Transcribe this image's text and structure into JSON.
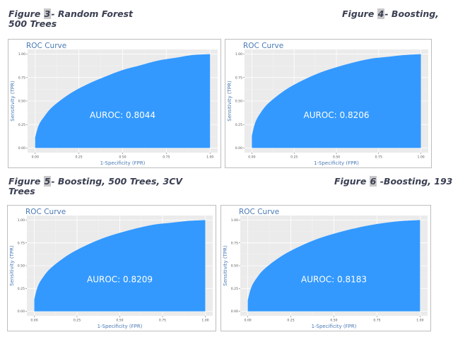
{
  "captions": [
    {
      "prefix": "Figure ",
      "num": "3",
      "rest": "- Random Forest",
      "line2": "500 Trees"
    },
    {
      "prefix": "Figure ",
      "num": "4",
      "rest": "- Boosting,",
      "line2": ""
    },
    {
      "prefix": "Figure ",
      "num": "5",
      "rest": "- Boosting, 500 Trees, 3CV",
      "line2": "Trees"
    },
    {
      "prefix": "Figure ",
      "num": "6",
      "rest": " -Boosting, 193",
      "line2": ""
    }
  ],
  "chart_data": [
    {
      "type": "area",
      "title": "ROC Curve",
      "xlabel": "1-Specificity (FPR)",
      "ylabel": "Sensitivity (TPR)",
      "annotation": "AUROC: 0.8044",
      "auc": 0.8044,
      "xticks": [
        "0.00",
        "0.25",
        "0.50",
        "0.75",
        "1.00"
      ],
      "yticks": [
        "0.00",
        "0.25",
        "0.50",
        "0.75",
        "1.00"
      ],
      "xlim": [
        0,
        1
      ],
      "ylim": [
        0,
        1
      ],
      "grid": true,
      "color": "#3399ff",
      "x": [
        0,
        0.02,
        0.05,
        0.1,
        0.2,
        0.3,
        0.4,
        0.5,
        0.6,
        0.7,
        0.8,
        0.9,
        1.0
      ],
      "y": [
        0.11,
        0.24,
        0.33,
        0.44,
        0.58,
        0.68,
        0.76,
        0.83,
        0.88,
        0.93,
        0.96,
        0.99,
        1.0
      ]
    },
    {
      "type": "area",
      "title": "ROC Curve",
      "xlabel": "1-Specificity (FPR)",
      "ylabel": "Sensitivity (TPR)",
      "annotation": "AUROC: 0.8206",
      "auc": 0.8206,
      "xticks": [
        "0.00",
        "0.25",
        "0.50",
        "0.75",
        "1.00"
      ],
      "yticks": [
        "0.00",
        "0.25",
        "0.50",
        "0.75",
        "1.00"
      ],
      "xlim": [
        0,
        1
      ],
      "ylim": [
        0,
        1
      ],
      "grid": true,
      "color": "#3399ff",
      "x": [
        0,
        0.02,
        0.05,
        0.1,
        0.2,
        0.3,
        0.4,
        0.5,
        0.6,
        0.7,
        0.8,
        0.9,
        1.0
      ],
      "y": [
        0.13,
        0.27,
        0.37,
        0.48,
        0.62,
        0.72,
        0.8,
        0.86,
        0.91,
        0.95,
        0.97,
        0.99,
        1.0
      ]
    },
    {
      "type": "area",
      "title": "ROC Curve",
      "xlabel": "1-Specificity (FPR)",
      "ylabel": "Sensitivity (TPR)",
      "annotation": "AUROC: 0.8209",
      "auc": 0.8209,
      "xticks": [
        "0.00",
        "0.25",
        "0.50",
        "0.75",
        "1.00"
      ],
      "yticks": [
        "0.00",
        "0.25",
        "0.50",
        "0.75",
        "1.00"
      ],
      "xlim": [
        0,
        1
      ],
      "ylim": [
        0,
        1
      ],
      "grid": true,
      "color": "#3399ff",
      "x": [
        0,
        0.02,
        0.05,
        0.1,
        0.2,
        0.3,
        0.4,
        0.5,
        0.6,
        0.7,
        0.8,
        0.9,
        1.0
      ],
      "y": [
        0.13,
        0.27,
        0.37,
        0.48,
        0.62,
        0.72,
        0.8,
        0.86,
        0.91,
        0.95,
        0.97,
        0.99,
        1.0
      ]
    },
    {
      "type": "area",
      "title": "ROC Curve",
      "xlabel": "1-Specificity (FPR)",
      "ylabel": "Sensitivity (TPR)",
      "annotation": "AUROC: 0.8183",
      "auc": 0.8183,
      "xticks": [
        "0.00",
        "0.25",
        "0.50",
        "0.75",
        "1.00"
      ],
      "yticks": [
        "0.00",
        "0.25",
        "0.50",
        "0.75",
        "1.00"
      ],
      "xlim": [
        0,
        1
      ],
      "ylim": [
        0,
        1
      ],
      "grid": true,
      "color": "#3399ff",
      "x": [
        0,
        0.02,
        0.05,
        0.1,
        0.2,
        0.3,
        0.4,
        0.5,
        0.6,
        0.7,
        0.8,
        0.9,
        1.0
      ],
      "y": [
        0.12,
        0.26,
        0.36,
        0.47,
        0.61,
        0.71,
        0.79,
        0.85,
        0.9,
        0.94,
        0.97,
        0.99,
        1.0
      ]
    }
  ]
}
